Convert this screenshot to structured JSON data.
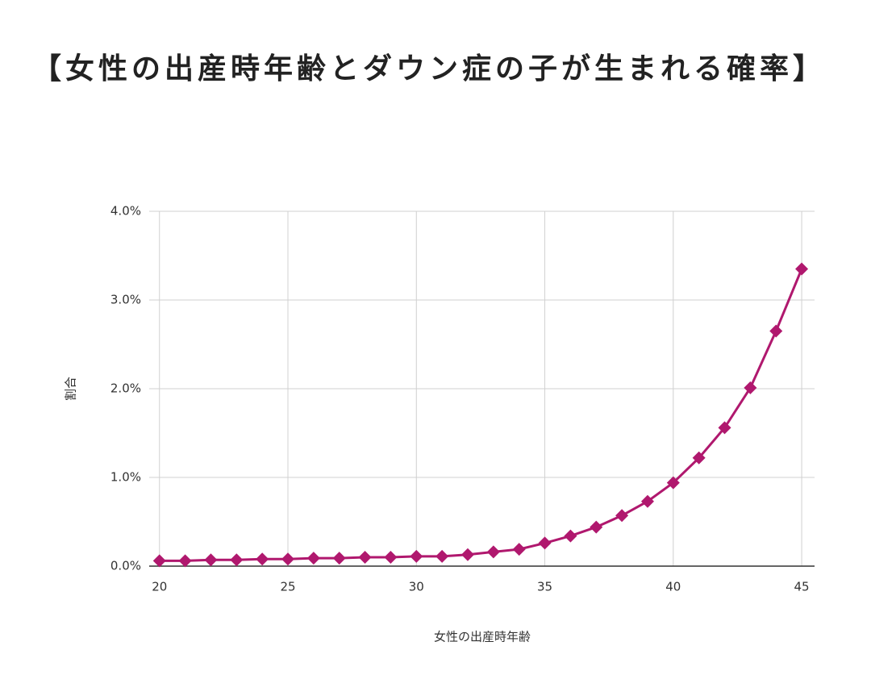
{
  "chart_data": {
    "type": "line",
    "title": "【女性の出産時年齢とダウン症の子が生まれる確率】",
    "x_label": "女性の出産時年齢",
    "y_label": "割合",
    "x": [
      20,
      21,
      22,
      23,
      24,
      25,
      26,
      27,
      28,
      29,
      30,
      31,
      32,
      33,
      34,
      35,
      36,
      37,
      38,
      39,
      40,
      41,
      42,
      43,
      44,
      45
    ],
    "series": [
      {
        "name": "割合",
        "color": "#b0186e",
        "values": [
          0.06,
          0.06,
          0.07,
          0.07,
          0.08,
          0.08,
          0.09,
          0.09,
          0.1,
          0.1,
          0.11,
          0.11,
          0.13,
          0.16,
          0.19,
          0.26,
          0.34,
          0.44,
          0.57,
          0.73,
          0.94,
          1.22,
          1.56,
          2.01,
          2.65,
          3.35
        ]
      }
    ],
    "xlim": [
      19.6,
      45.5
    ],
    "xticks": [
      20,
      25,
      30,
      35,
      40,
      45
    ],
    "ylim": [
      0,
      4
    ],
    "yticks": [
      {
        "value": 0,
        "label": "0.0%"
      },
      {
        "value": 1,
        "label": "1.0%"
      },
      {
        "value": 2,
        "label": "2.0%"
      },
      {
        "value": 3,
        "label": "3.0%"
      },
      {
        "value": 4,
        "label": "4.0%"
      }
    ],
    "grid": true
  }
}
